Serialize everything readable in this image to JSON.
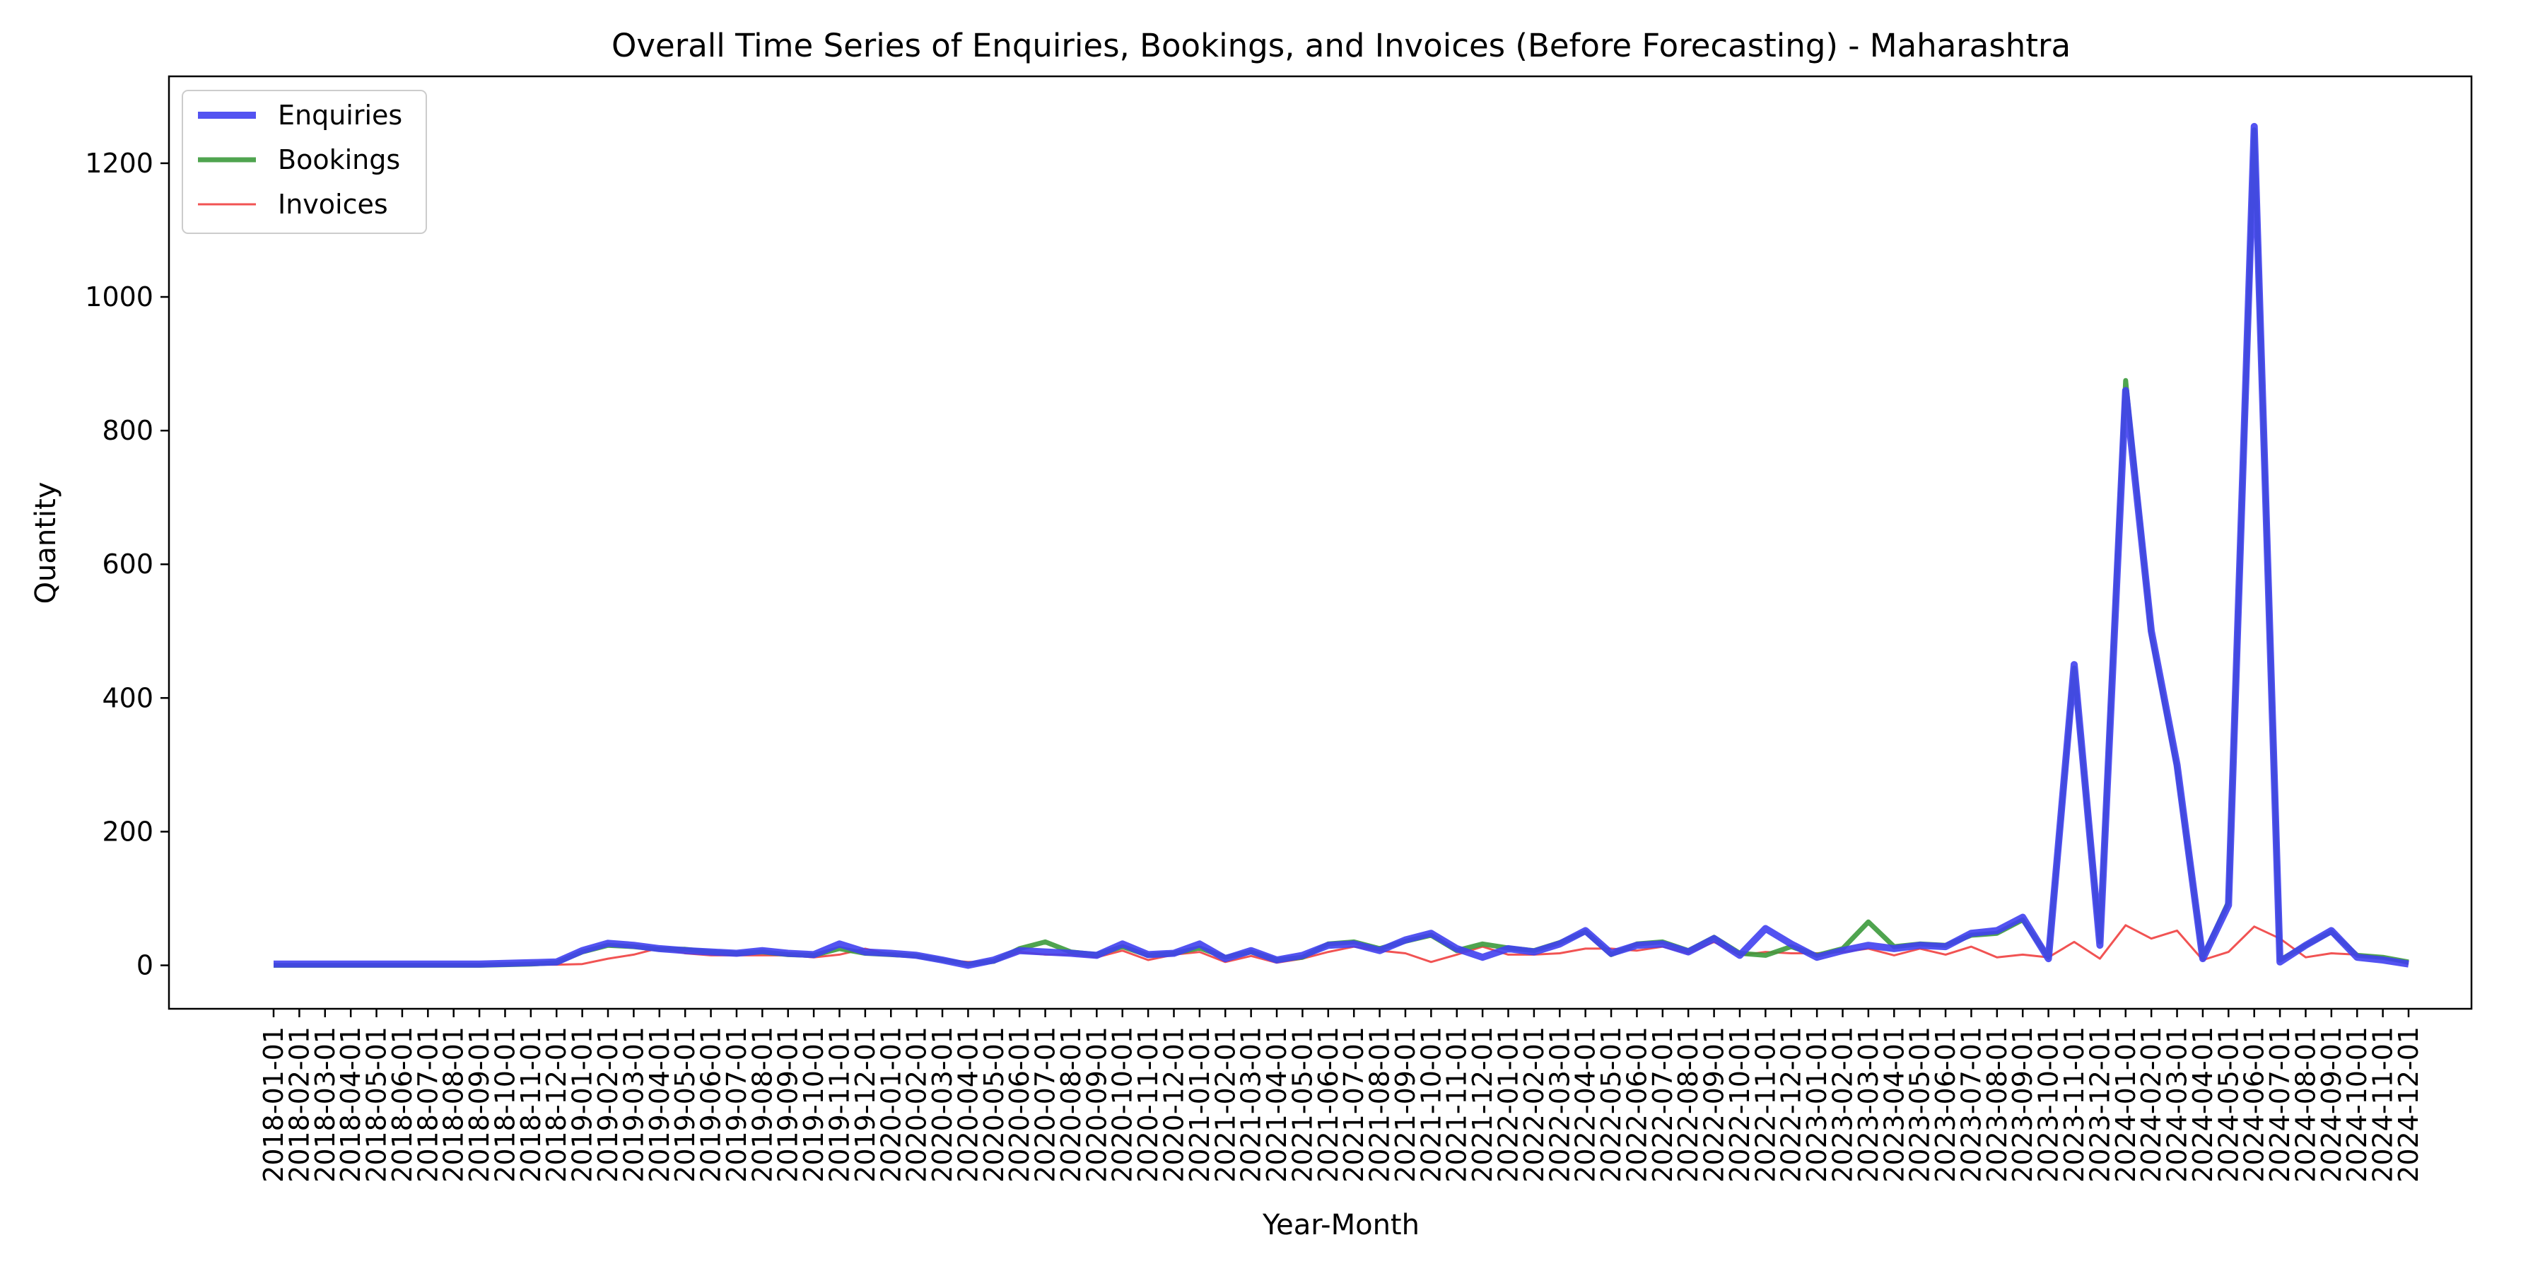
{
  "chart_data": {
    "type": "line",
    "title": "Overall Time Series of Enquiries, Bookings, and Invoices (Before Forecasting) - Maharashtra",
    "xlabel": "Year-Month",
    "ylabel": "Quantity",
    "ylim": [
      -65,
      1330
    ],
    "yticks": [
      0,
      200,
      400,
      600,
      800,
      1000,
      1200
    ],
    "grid": false,
    "legend_position": "top-left",
    "x_tick_labels": [
      "2018-01-01",
      "2018-02-01",
      "2018-03-01",
      "2018-04-01",
      "2018-05-01",
      "2018-06-01",
      "2018-07-01",
      "2018-08-01",
      "2018-09-01",
      "2018-10-01",
      "2018-11-01",
      "2018-12-01",
      "2019-01-01",
      "2019-02-01",
      "2019-03-01",
      "2019-04-01",
      "2019-05-01",
      "2019-06-01",
      "2019-07-01",
      "2019-08-01",
      "2019-09-01",
      "2019-10-01",
      "2019-11-01",
      "2019-12-01",
      "2020-01-01",
      "2020-02-01",
      "2020-03-01",
      "2020-04-01",
      "2020-05-01",
      "2020-06-01",
      "2020-07-01",
      "2020-08-01",
      "2020-09-01",
      "2020-10-01",
      "2020-11-01",
      "2020-12-01",
      "2021-01-01",
      "2021-02-01",
      "2021-03-01",
      "2021-04-01",
      "2021-05-01",
      "2021-06-01",
      "2021-07-01",
      "2021-08-01",
      "2021-09-01",
      "2021-10-01",
      "2021-11-01",
      "2021-12-01",
      "2022-01-01",
      "2022-02-01",
      "2022-03-01",
      "2022-04-01",
      "2022-05-01",
      "2022-06-01",
      "2022-07-01",
      "2022-08-01",
      "2022-09-01",
      "2022-10-01",
      "2022-11-01",
      "2022-12-01",
      "2023-01-01",
      "2023-02-01",
      "2023-03-01",
      "2023-04-01",
      "2023-05-01",
      "2023-06-01",
      "2023-07-01",
      "2023-08-01",
      "2023-09-01",
      "2023-10-01",
      "2023-11-01",
      "2023-12-01",
      "2024-01-01",
      "2024-02-01",
      "2024-03-01",
      "2024-04-01",
      "2024-05-01",
      "2024-06-01",
      "2024-07-01",
      "2024-08-01",
      "2024-09-01",
      "2024-10-01",
      "2024-11-01",
      "2024-12-01"
    ],
    "series": [
      {
        "name": "Enquiries",
        "color": "#4040f0",
        "values": [
          2,
          2,
          2,
          2,
          2,
          2,
          2,
          2,
          2,
          3,
          4,
          5,
          22,
          33,
          30,
          25,
          22,
          20,
          18,
          22,
          18,
          16,
          32,
          20,
          18,
          15,
          8,
          0,
          8,
          22,
          20,
          18,
          15,
          32,
          16,
          18,
          32,
          10,
          22,
          8,
          15,
          30,
          32,
          22,
          38,
          48,
          25,
          12,
          25,
          20,
          32,
          52,
          18,
          30,
          32,
          20,
          40,
          15,
          55,
          32,
          12,
          22,
          30,
          25,
          30,
          28,
          48,
          52,
          72,
          10,
          450,
          30,
          860,
          500,
          300,
          10,
          90,
          1255,
          5,
          30,
          52,
          12,
          8,
          2
        ]
      },
      {
        "name": "Bookings",
        "color": "#3c9a3c",
        "values": [
          0,
          0,
          0,
          0,
          0,
          0,
          0,
          0,
          0,
          1,
          2,
          4,
          20,
          30,
          28,
          24,
          24,
          20,
          18,
          20,
          16,
          15,
          25,
          18,
          16,
          14,
          8,
          2,
          6,
          25,
          35,
          20,
          16,
          28,
          15,
          18,
          26,
          12,
          20,
          8,
          12,
          32,
          35,
          25,
          36,
          45,
          22,
          32,
          26,
          22,
          34,
          50,
          16,
          32,
          35,
          22,
          42,
          18,
          15,
          28,
          15,
          25,
          65,
          28,
          32,
          30,
          45,
          48,
          68,
          12,
          445,
          35,
          875,
          495,
          295,
          12,
          95,
          1250,
          8,
          30,
          50,
          15,
          12,
          5
        ]
      },
      {
        "name": "Invoices",
        "color": "#f04040",
        "values": [
          0,
          0,
          0,
          0,
          0,
          0,
          0,
          0,
          0,
          0,
          1,
          1,
          2,
          10,
          16,
          26,
          18,
          15,
          15,
          15,
          15,
          12,
          16,
          25,
          16,
          12,
          8,
          5,
          5,
          20,
          16,
          16,
          12,
          22,
          8,
          16,
          20,
          5,
          14,
          4,
          10,
          20,
          28,
          22,
          18,
          5,
          16,
          28,
          16,
          16,
          18,
          25,
          25,
          22,
          28,
          18,
          35,
          15,
          20,
          18,
          18,
          20,
          25,
          15,
          25,
          16,
          28,
          12,
          16,
          12,
          35,
          10,
          60,
          40,
          52,
          8,
          20,
          58,
          40,
          12,
          18,
          16,
          12,
          2
        ]
      }
    ]
  }
}
